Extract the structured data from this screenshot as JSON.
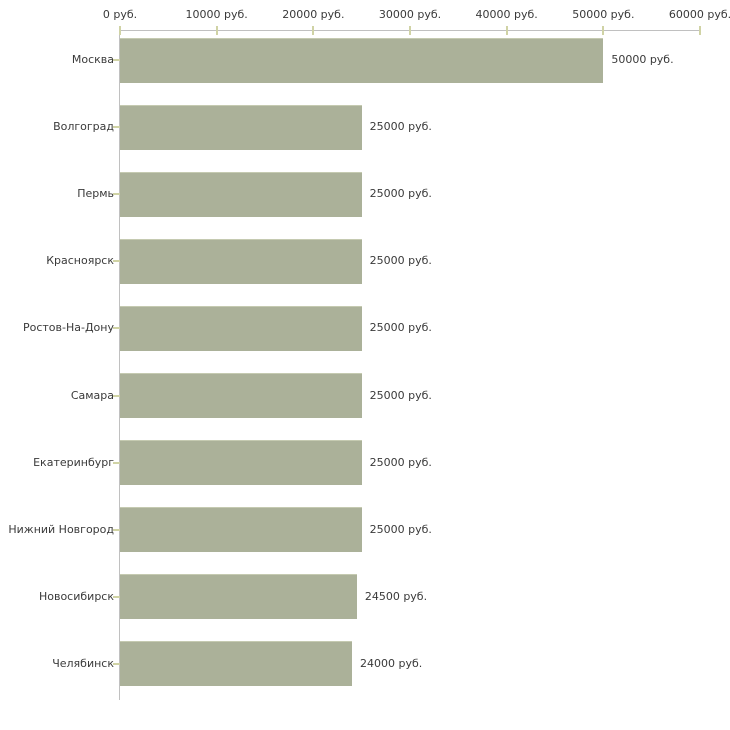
{
  "chart_data": {
    "type": "bar",
    "orientation": "horizontal",
    "title": "",
    "xlabel": "",
    "ylabel": "",
    "unit": "руб.",
    "categories": [
      "Москва",
      "Волгоград",
      "Пермь",
      "Красноярск",
      "Ростов-На-Дону",
      "Самара",
      "Екатеринбург",
      "Нижний Новгород",
      "Новосибирск",
      "Челябинск"
    ],
    "values": [
      50000,
      25000,
      25000,
      25000,
      25000,
      25000,
      25000,
      25000,
      24500,
      24000
    ],
    "value_labels": [
      "50000 руб.",
      "25000 руб.",
      "25000 руб.",
      "25000 руб.",
      "25000 руб.",
      "25000 руб.",
      "25000 руб.",
      "25000 руб.",
      "24500 руб.",
      "24000 руб."
    ],
    "xlim": [
      0,
      60000
    ],
    "x_ticks": [
      0,
      10000,
      20000,
      30000,
      40000,
      50000,
      60000
    ],
    "x_tick_labels": [
      "0 руб.",
      "10000 руб.",
      "20000 руб.",
      "30000 руб.",
      "40000 руб.",
      "50000 руб.",
      "60000 руб."
    ],
    "grid": false,
    "legend": false,
    "style": {
      "bar_color": "#abb199",
      "bar_highlight": "#c5cab1",
      "axis_color": "#c0c0c0",
      "tick_color": "#d0d3a5",
      "text_color": "#3a3a3a",
      "background": "#ffffff"
    }
  }
}
